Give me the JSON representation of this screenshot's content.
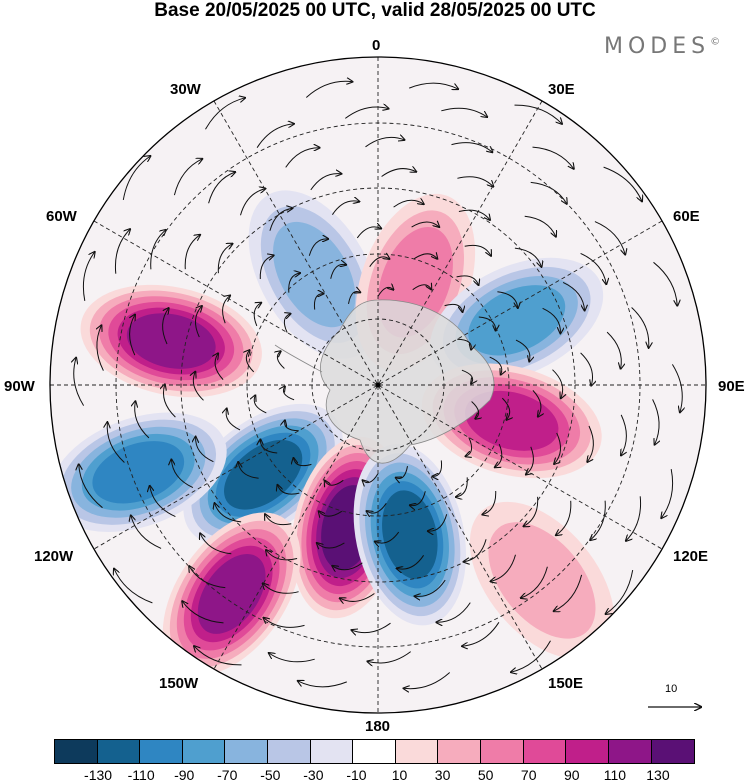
{
  "title": "Base 20/05/2025 00 UTC, valid 28/05/2025 00 UTC",
  "brand": "MODES",
  "brand_mark": "©",
  "longitude_labels": {
    "lon_0": "0",
    "lon_30e": "30E",
    "lon_60e": "60E",
    "lon_90e": "90E",
    "lon_120e": "120E",
    "lon_150e": "150E",
    "lon_180": "180",
    "lon_150w": "150W",
    "lon_120w": "120W",
    "lon_90w": "90W",
    "lon_60w": "60W",
    "lon_30w": "30W"
  },
  "reference_vector_label": "10",
  "colorbar": {
    "colors": [
      "#0d3a5c",
      "#14618f",
      "#2f86c2",
      "#4f9fcf",
      "#88b4de",
      "#b9c6e6",
      "#e3e3f2",
      "#ffffff",
      "#fadada",
      "#f6acbd",
      "#ef7ca8",
      "#e04a98",
      "#c01f8a",
      "#8e1688",
      "#5a1075"
    ],
    "tick_labels": [
      "-130",
      "-110",
      "-90",
      "-70",
      "-50",
      "-30",
      "-10",
      "10",
      "30",
      "50",
      "70",
      "90",
      "110",
      "130"
    ]
  },
  "anomaly_blobs": [
    {
      "sign": "negative",
      "peak_level": "-50",
      "lon": -30,
      "colat": 35
    },
    {
      "sign": "positive",
      "peak_level": "50",
      "lon": 20,
      "colat": 30
    },
    {
      "sign": "positive",
      "peak_level": "110",
      "lon": -78,
      "colat": 58
    },
    {
      "sign": "negative",
      "peak_level": "-70",
      "lon": 65,
      "colat": 42
    },
    {
      "sign": "positive",
      "peak_level": "90",
      "lon": 105,
      "colat": 38
    },
    {
      "sign": "negative",
      "peak_level": "-110",
      "lon": -128,
      "colat": 40
    },
    {
      "sign": "negative",
      "peak_level": "-90",
      "lon": -110,
      "colat": 70
    },
    {
      "sign": "positive",
      "peak_level": "130",
      "lon": -168,
      "colat": 40
    },
    {
      "sign": "positive",
      "peak_level": "110",
      "lon": -145,
      "colat": 70
    },
    {
      "sign": "negative",
      "peak_level": "-110",
      "lon": 168,
      "colat": 42
    },
    {
      "sign": "positive",
      "peak_level": "30",
      "lon": 140,
      "colat": 70
    }
  ]
}
